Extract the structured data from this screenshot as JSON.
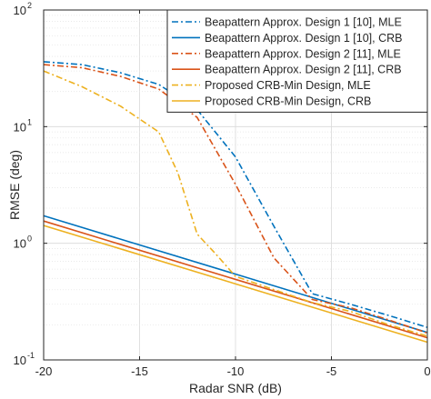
{
  "chart_data": {
    "type": "line",
    "xlabel": "Radar SNR (dB)",
    "ylabel": "RMSE (deg)",
    "xlim": [
      -20,
      0
    ],
    "ylim": [
      0.1,
      100
    ],
    "yscale": "log",
    "grid": true,
    "legend_position": "top-right",
    "x_ticks": [
      -20,
      -15,
      -10,
      -5,
      0
    ],
    "x_tick_labels": [
      "-20",
      "-15",
      "-10",
      "-5",
      "0"
    ],
    "y_ticks": [
      0.1,
      1,
      10,
      100
    ],
    "y_tick_labels": [
      {
        "base": "10",
        "exp": "-1"
      },
      {
        "base": "10",
        "exp": "0"
      },
      {
        "base": "10",
        "exp": "1"
      },
      {
        "base": "10",
        "exp": "2"
      }
    ],
    "series": [
      {
        "name": "Beapattern Approx. Design 1 [10], MLE",
        "color": "#0072BD",
        "dash": "dashdot",
        "x": [
          -20,
          -18,
          -16,
          -14,
          -12,
          -10,
          -8,
          -6,
          -4,
          -2,
          0
        ],
        "y": [
          36,
          34,
          29,
          23,
          14,
          5.5,
          1.4,
          0.37,
          0.3,
          0.24,
          0.19
        ]
      },
      {
        "name": "Beapattern Approx. Design 1 [10], CRB",
        "color": "#0072BD",
        "dash": "solid",
        "x": [
          -20,
          0
        ],
        "y": [
          1.72,
          0.172
        ]
      },
      {
        "name": "Beapattern Approx. Design 2 [11], MLE",
        "color": "#D95319",
        "dash": "dashdot",
        "x": [
          -20,
          -18,
          -16,
          -14,
          -12,
          -10,
          -8,
          -6,
          -4,
          -2,
          0
        ],
        "y": [
          34,
          32,
          27,
          21,
          12,
          3.2,
          0.75,
          0.33,
          0.28,
          0.22,
          0.17
        ]
      },
      {
        "name": "Beapattern Approx. Design 2 [11], CRB",
        "color": "#D95319",
        "dash": "solid",
        "x": [
          -20,
          0
        ],
        "y": [
          1.55,
          0.155
        ]
      },
      {
        "name": "Proposed CRB-Min Design, MLE",
        "color": "#EDB120",
        "dash": "dashdot",
        "x": [
          -20,
          -18,
          -16,
          -14,
          -13,
          -12,
          -11,
          -10,
          -8,
          -6,
          -4,
          -2,
          0
        ],
        "y": [
          30,
          22,
          15,
          9,
          4,
          1.2,
          0.8,
          0.52,
          0.4,
          0.31,
          0.26,
          0.2,
          0.16
        ]
      },
      {
        "name": "Proposed CRB-Min Design, CRB",
        "color": "#EDB120",
        "dash": "solid",
        "x": [
          -20,
          0
        ],
        "y": [
          1.42,
          0.142
        ]
      }
    ]
  }
}
